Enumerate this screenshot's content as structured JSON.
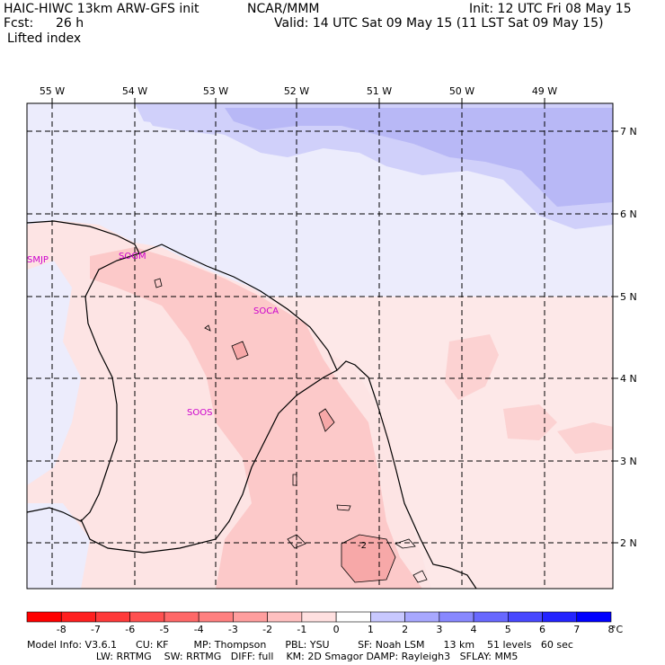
{
  "header": {
    "model": "HAIC-HIWC 13km ARW-GFS init",
    "org": "NCAR/MMM",
    "init": "Init: 12 UTC Fri 08 May 15",
    "fcst_label": "Fcst:",
    "fcst_value": "26 h",
    "valid": "Valid: 14 UTC Sat 09 May 15 (11 LST Sat 09 May 15)",
    "field": "Lifted index"
  },
  "map": {
    "lon_labels": [
      "55 W",
      "54 W",
      "53 W",
      "52 W",
      "51 W",
      "50 W",
      "49 W"
    ],
    "lat_labels": [
      "7 N",
      "6 N",
      "5 N",
      "4 N",
      "3 N",
      "2 N"
    ],
    "stations": [
      "SMJP",
      "SOGM",
      "SOCA",
      "SOOS"
    ],
    "contour_label": "-2"
  },
  "colorbar": {
    "levels": [
      "-8",
      "-7",
      "-6",
      "-5",
      "-4",
      "-3",
      "-2",
      "-1",
      "0",
      "1",
      "2",
      "3",
      "4",
      "5",
      "6",
      "7",
      "8"
    ],
    "unit": "°C",
    "colors": [
      "#ff0000",
      "#ff2020",
      "#ff3a3a",
      "#ff5050",
      "#ff6868",
      "#ff8080",
      "#ff9e9e",
      "#ffc0c0",
      "#ffe0e0",
      "#ffffff",
      "#c8c8ff",
      "#a8a8ff",
      "#8888ff",
      "#6868ff",
      "#4848ff",
      "#2424ff",
      "#0000ff"
    ]
  },
  "footer": {
    "line1": "Model Info: V3.6.1      CU: KF        MP: Thompson      PBL: YSU         SF: Noah LSM      13 km    51 levels   60 sec",
    "line2": "                      LW: RRTMG    SW: RRTMG   DIFF: full    KM: 2D Smagor DAMP: Rayleigh3   SFLAY: MM5"
  }
}
